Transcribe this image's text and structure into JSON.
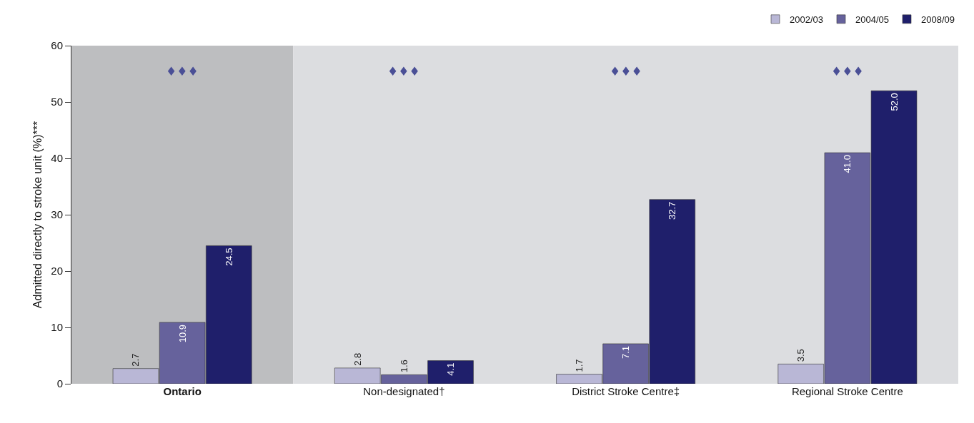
{
  "chart_data": {
    "type": "bar",
    "ylabel": "Admitted directly to stroke unit (%)***",
    "categories": [
      "Ontario",
      "Non-designated†",
      "District Stroke Centre‡",
      "Regional Stroke Centre"
    ],
    "series": [
      {
        "name": "2002/03",
        "color": "#b9b7d6",
        "values": [
          2.7,
          2.8,
          1.7,
          3.5
        ],
        "value_labels": [
          "2.7",
          "2.8",
          "1.7",
          "3.5"
        ]
      },
      {
        "name": "2004/05",
        "color": "#66629c",
        "values": [
          10.9,
          1.6,
          7.1,
          41.0
        ],
        "value_labels": [
          "10.9",
          "1.6",
          "7.1",
          "41.0"
        ]
      },
      {
        "name": "2008/09",
        "color": "#1f1f6b",
        "values": [
          24.5,
          4.1,
          32.7,
          52.0
        ],
        "value_labels": [
          "24.5",
          "4.1",
          "32.7",
          "52.0"
        ]
      }
    ],
    "ylim": [
      0,
      60
    ],
    "yticks": [
      0,
      10,
      20,
      30,
      40,
      50,
      60
    ],
    "grid": false,
    "legend": "top right",
    "bands": [
      {
        "axis": "x",
        "from": "Ontario",
        "to": "Ontario",
        "color": "#bdbec0"
      },
      {
        "axis": "x",
        "from": "Non-designated†",
        "to": "Regional Stroke Centre",
        "color": "#dcdde0"
      }
    ],
    "annotations": [
      "♦♦♦",
      "♦♦♦",
      "♦♦♦",
      "♦♦♦"
    ]
  }
}
